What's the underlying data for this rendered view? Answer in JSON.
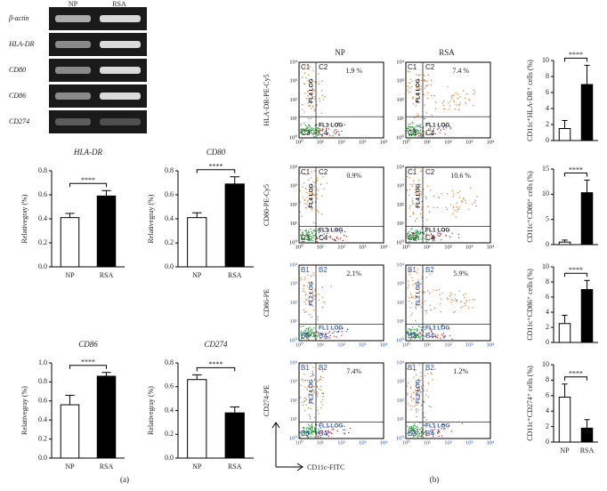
{
  "chart_data": [
    {
      "type": "bar",
      "title": "HLA-DR",
      "y_label": "Relativegray (%)",
      "categories": [
        "NP",
        "RSA"
      ],
      "values": [
        0.41,
        0.59
      ],
      "errors": [
        0.035,
        0.045
      ],
      "colors": [
        "#ffffff",
        "#000000"
      ],
      "ylim": [
        0,
        0.8
      ],
      "yticks": [
        {
          "value": 0,
          "label": "0.0"
        },
        0.2,
        0.4,
        0.6,
        0.8
      ],
      "annotation": "****"
    },
    {
      "type": "bar",
      "title": "CD80",
      "y_label": "Relativegray (%)",
      "categories": [
        "NP",
        "RSA"
      ],
      "values": [
        0.41,
        0.69
      ],
      "errors": [
        0.04,
        0.06
      ],
      "colors": [
        "#ffffff",
        "#000000"
      ],
      "ylim": [
        0,
        0.8
      ],
      "yticks": [
        {
          "value": 0,
          "label": "0.0"
        },
        0.2,
        0.4,
        0.6,
        0.8
      ],
      "annotation": "****"
    },
    {
      "type": "bar",
      "title": "CD86",
      "y_label": "Relativegray (%)",
      "categories": [
        "NP",
        "RSA"
      ],
      "values": [
        0.56,
        0.86
      ],
      "errors": [
        0.1,
        0.04
      ],
      "colors": [
        "#ffffff",
        "#000000"
      ],
      "ylim": [
        0,
        1
      ],
      "yticks": [
        {
          "value": 0,
          "label": "0.0"
        },
        0.2,
        0.4,
        0.6,
        0.8,
        {
          "value": 1,
          "label": "1.0"
        }
      ],
      "annotation": "****"
    },
    {
      "type": "bar",
      "title": "CD274",
      "y_label": "Relativegray (%)",
      "categories": [
        "NP",
        "RSA"
      ],
      "values": [
        0.66,
        0.38
      ],
      "errors": [
        0.04,
        0.05
      ],
      "colors": [
        "#ffffff",
        "#000000"
      ],
      "ylim": [
        0,
        0.8
      ],
      "yticks": [
        {
          "value": 0,
          "label": "0.0"
        },
        0.2,
        0.4,
        0.6,
        0.8
      ],
      "annotation": "****"
    },
    {
      "type": "bar",
      "y_label": "CD11c⁺HLA-DR⁺ cells (%)",
      "categories": [
        null,
        null
      ],
      "values": [
        1.5,
        7.0
      ],
      "errors": [
        1.0,
        2.4
      ],
      "colors": [
        "#ffffff",
        "#000000"
      ],
      "ylim": [
        0,
        10
      ],
      "yticks": [
        0,
        2,
        4,
        6,
        8,
        10
      ],
      "annotation": "****"
    },
    {
      "type": "bar",
      "y_label": "CD11c⁺CD80⁺ cells (%)",
      "categories": [
        null,
        null
      ],
      "values": [
        0.5,
        10.3
      ],
      "errors": [
        0.4,
        2.5
      ],
      "colors": [
        "#ffffff",
        "#000000"
      ],
      "ylim": [
        0,
        15
      ],
      "yticks": [
        0,
        5,
        10,
        15
      ],
      "annotation": "****"
    },
    {
      "type": "bar",
      "y_label": "CD11c⁺CD86⁺ cells (%)",
      "categories": [
        null,
        null
      ],
      "values": [
        2.5,
        7.0
      ],
      "errors": [
        1.1,
        1.2
      ],
      "colors": [
        "#ffffff",
        "#000000"
      ],
      "ylim": [
        0,
        10
      ],
      "yticks": [
        0,
        2,
        4,
        6,
        8,
        10
      ],
      "annotation": "****"
    },
    {
      "type": "bar",
      "y_label": "CD11c⁺CD274⁺ cells (%)",
      "categories": [
        "NP",
        "RSA"
      ],
      "values": [
        5.8,
        1.8
      ],
      "errors": [
        1.7,
        1.1
      ],
      "colors": [
        "#ffffff",
        "#000000"
      ],
      "ylim": [
        0,
        10
      ],
      "yticks": [
        0,
        2,
        4,
        6,
        8,
        10
      ],
      "annotation": "****"
    }
  ],
  "gel": {
    "headers": [
      "NP",
      "RSA"
    ],
    "lanes": [
      "β-actin",
      "HLA-DR",
      "CD80",
      "CD86",
      "CD274"
    ]
  },
  "flow": {
    "columns": [
      "NP",
      "RSA"
    ],
    "x_axis": "FL1 LOG",
    "decades": [
      "10⁰",
      "10¹",
      "10²",
      "10³",
      "10⁴"
    ],
    "rows": [
      {
        "marker": "HLA-DR-PE-Cy5",
        "y_axis": "FL4 LOG",
        "quadrants": [
          "C1",
          "C2",
          "C3",
          "C4"
        ],
        "percents": [
          "1.9 %",
          "7.4 %"
        ]
      },
      {
        "marker": "CD80-PE-Cy5",
        "y_axis": "FL4 LOG",
        "quadrants": [
          "C1",
          "C2",
          "C3",
          "C4"
        ],
        "percents": [
          "0.9%",
          "10.6 %"
        ]
      },
      {
        "marker": "CD86-PE",
        "y_axis": "FL2 LOG",
        "quadrants": [
          "B1",
          "B2",
          "B3",
          "B4"
        ],
        "percents": [
          "2.1%",
          "5.9%"
        ]
      },
      {
        "marker": "CD274-PE",
        "y_axis": "FL2 LOG",
        "quadrants": [
          "B1",
          "B2",
          "B3",
          "B4"
        ],
        "percents": [
          "7.4%",
          "1.2%"
        ]
      }
    ],
    "footer_x": "CD11c-FITC"
  },
  "panel_labels": [
    "(a)",
    "(b)"
  ]
}
